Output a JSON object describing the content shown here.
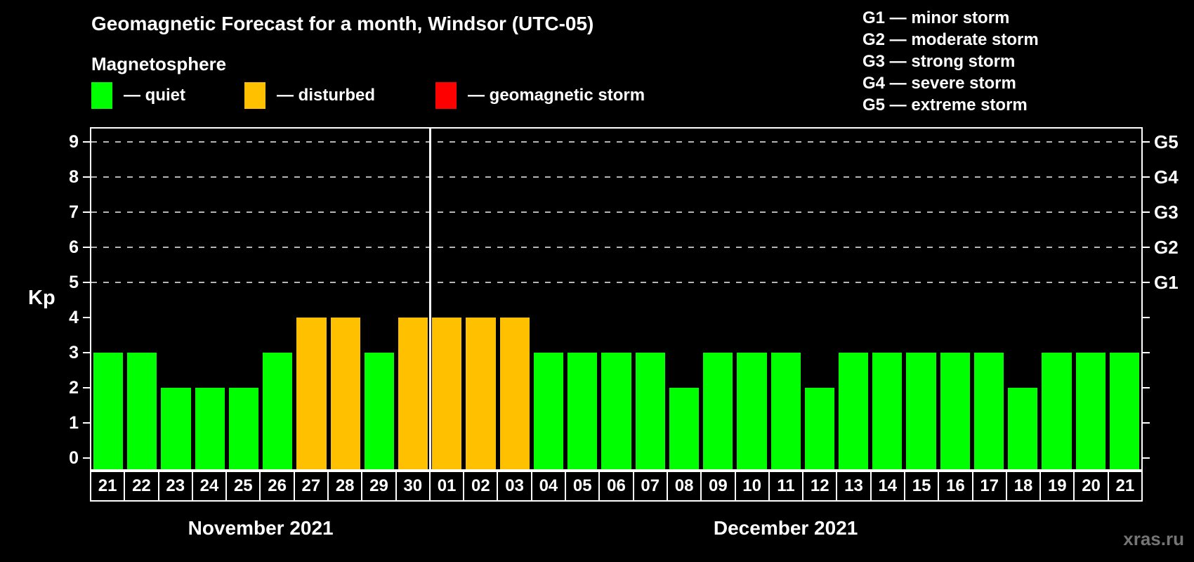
{
  "header": {
    "title": "Geomagnetic Forecast for a month, Windsor (UTC-05)",
    "subtitle": "Magnetosphere"
  },
  "legend": {
    "items": [
      {
        "key": "quiet",
        "color": "#00ff00",
        "label": "— quiet"
      },
      {
        "key": "disturbed",
        "color": "#ffc000",
        "label": "— disturbed"
      },
      {
        "key": "storm",
        "color": "#ff0000",
        "label": "— geomagnetic storm"
      }
    ]
  },
  "g_legend": {
    "items": [
      "G1 — minor storm",
      "G2 — moderate storm",
      "G3 — strong storm",
      "G4 — severe storm",
      "G5 — extreme storm"
    ]
  },
  "chart_data": {
    "type": "bar",
    "title": "Geomagnetic Forecast for a month, Windsor (UTC-05)",
    "ylabel": "Kp",
    "ylim": [
      0,
      9
    ],
    "yticks": [
      0,
      1,
      2,
      3,
      4,
      5,
      6,
      7,
      8,
      9
    ],
    "gridlines_at": [
      5,
      6,
      7,
      8,
      9
    ],
    "grid": true,
    "right_axis_labels": [
      {
        "label": "G1",
        "kp": 5
      },
      {
        "label": "G2",
        "kp": 6
      },
      {
        "label": "G3",
        "kp": 7
      },
      {
        "label": "G4",
        "kp": 8
      },
      {
        "label": "G5",
        "kp": 9
      }
    ],
    "categories": [
      "21",
      "22",
      "23",
      "24",
      "25",
      "26",
      "27",
      "28",
      "29",
      "30",
      "01",
      "02",
      "03",
      "04",
      "05",
      "06",
      "07",
      "08",
      "09",
      "10",
      "11",
      "12",
      "13",
      "14",
      "15",
      "16",
      "17",
      "18",
      "19",
      "20",
      "21"
    ],
    "values": [
      3,
      3,
      2,
      2,
      2,
      3,
      4,
      4,
      3,
      4,
      4,
      4,
      4,
      3,
      3,
      3,
      3,
      2,
      3,
      3,
      3,
      2,
      3,
      3,
      3,
      3,
      3,
      2,
      3,
      3,
      3
    ],
    "states": [
      "quiet",
      "quiet",
      "quiet",
      "quiet",
      "quiet",
      "quiet",
      "disturbed",
      "disturbed",
      "quiet",
      "disturbed",
      "disturbed",
      "disturbed",
      "disturbed",
      "quiet",
      "quiet",
      "quiet",
      "quiet",
      "quiet",
      "quiet",
      "quiet",
      "quiet",
      "quiet",
      "quiet",
      "quiet",
      "quiet",
      "quiet",
      "quiet",
      "quiet",
      "quiet",
      "quiet",
      "quiet"
    ],
    "months": [
      {
        "label": "November 2021",
        "days": 10
      },
      {
        "label": "December 2021",
        "days": 21
      }
    ],
    "divider_after_index": 9
  },
  "watermark": "xras.ru",
  "colors": {
    "background": "#000000",
    "axis": "#ffffff",
    "grid": "#b5b5b5",
    "quiet": "#00ff00",
    "disturbed": "#ffc000",
    "storm": "#ff0000",
    "watermark": "#757575"
  }
}
